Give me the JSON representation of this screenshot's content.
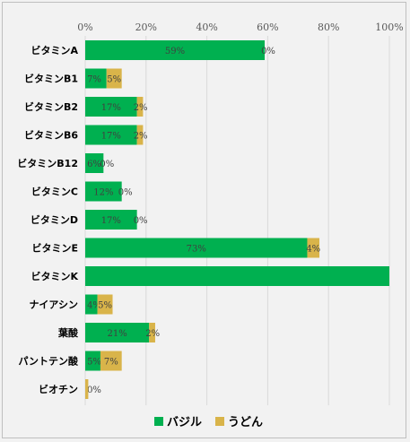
{
  "chart_data": {
    "type": "bar",
    "orientation": "horizontal",
    "stacked": true,
    "categories": [
      "ビタミンA",
      "ビタミンB1",
      "ビタミンB2",
      "ビタミンB6",
      "ビタミンB12",
      "ビタミンC",
      "ビタミンD",
      "ビタミンE",
      "ビタミンK",
      "ナイアシン",
      "葉酸",
      "パントテン酸",
      "ビオチン"
    ],
    "series": [
      {
        "name": "バジル",
        "color": "#00b050",
        "values": [
          59,
          7,
          17,
          17,
          6,
          12,
          17,
          73,
          100,
          4,
          21,
          5,
          0
        ],
        "labels": [
          "59%",
          "7%",
          "17%",
          "17%",
          "6%",
          "12%",
          "17%",
          "73%",
          "",
          "4%",
          "21%",
          "5%",
          "0%"
        ]
      },
      {
        "name": "うどん",
        "color": "#d9b44a",
        "values": [
          0,
          5,
          2,
          2,
          0,
          0,
          0,
          4,
          0,
          5,
          2,
          7,
          1
        ],
        "labels": [
          "0%",
          "5%",
          "2%",
          "2%",
          "0%",
          "0%",
          "0%",
          "4%",
          "",
          "5%",
          "2%",
          "7%",
          ""
        ]
      }
    ],
    "xlim": [
      0,
      100
    ],
    "xticks": [
      "0%",
      "20%",
      "40%",
      "60%",
      "80%",
      "100%"
    ],
    "grid": true,
    "legend": "bottom",
    "title": ""
  }
}
